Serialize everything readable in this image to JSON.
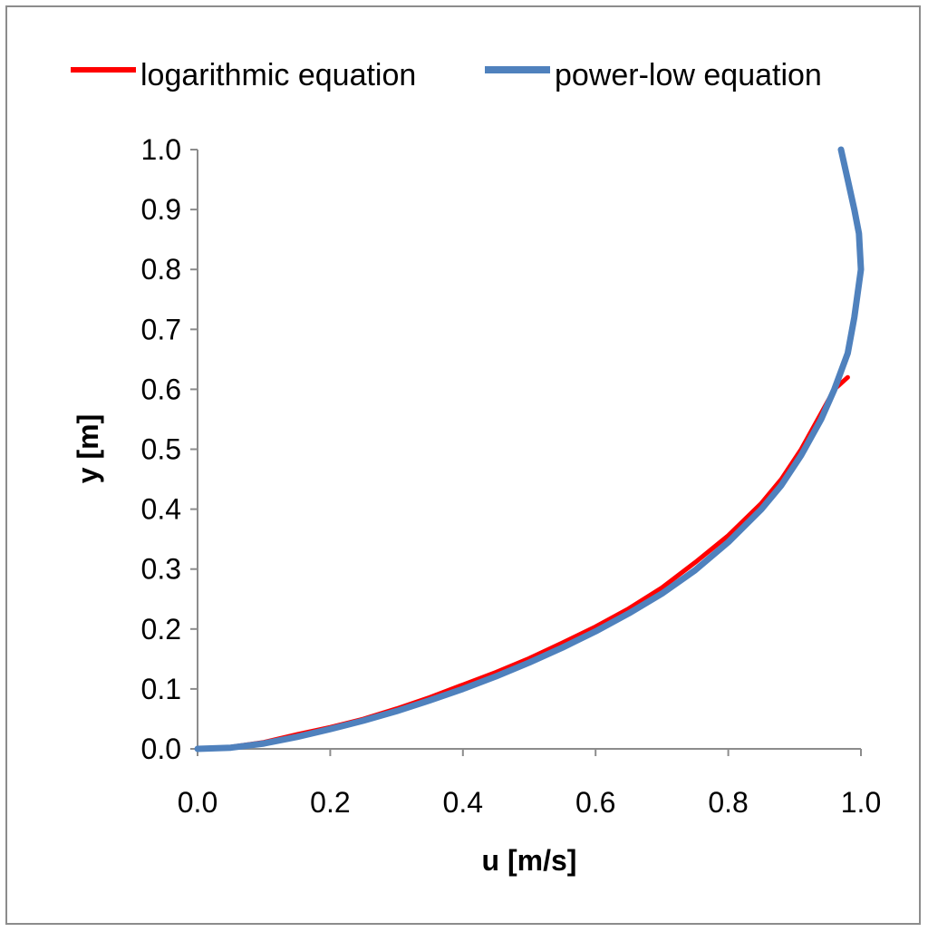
{
  "chart_data": {
    "type": "line",
    "xlabel": "u [m/s]",
    "ylabel": "y [m]",
    "xlim": [
      0,
      1
    ],
    "ylim": [
      0,
      1
    ],
    "x_ticks": [
      "0.0",
      "0.2",
      "0.4",
      "0.6",
      "0.8",
      "1.0"
    ],
    "y_ticks": [
      "0.0",
      "0.1",
      "0.2",
      "0.3",
      "0.4",
      "0.5",
      "0.6",
      "0.7",
      "0.8",
      "0.9",
      "1.0"
    ],
    "grid": false,
    "legend_position": "top",
    "series": [
      {
        "name": "logarithmic equation",
        "color": "#ff0000",
        "points": [
          [
            0.0,
            0.0
          ],
          [
            0.05,
            0.003
          ],
          [
            0.1,
            0.011
          ],
          [
            0.15,
            0.024
          ],
          [
            0.2,
            0.036
          ],
          [
            0.25,
            0.05
          ],
          [
            0.3,
            0.067
          ],
          [
            0.35,
            0.086
          ],
          [
            0.4,
            0.107
          ],
          [
            0.45,
            0.128
          ],
          [
            0.5,
            0.151
          ],
          [
            0.55,
            0.177
          ],
          [
            0.6,
            0.204
          ],
          [
            0.65,
            0.234
          ],
          [
            0.7,
            0.269
          ],
          [
            0.75,
            0.311
          ],
          [
            0.8,
            0.356
          ],
          [
            0.85,
            0.41
          ],
          [
            0.88,
            0.45
          ],
          [
            0.91,
            0.5
          ],
          [
            0.94,
            0.56
          ],
          [
            0.96,
            0.6
          ],
          [
            0.98,
            0.62
          ]
        ]
      },
      {
        "name": "power-low equation",
        "color": "#4f81bd",
        "points": [
          [
            0.0,
            0.0
          ],
          [
            0.05,
            0.002
          ],
          [
            0.1,
            0.009
          ],
          [
            0.15,
            0.02
          ],
          [
            0.2,
            0.033
          ],
          [
            0.25,
            0.047
          ],
          [
            0.3,
            0.063
          ],
          [
            0.35,
            0.081
          ],
          [
            0.4,
            0.1
          ],
          [
            0.45,
            0.121
          ],
          [
            0.5,
            0.144
          ],
          [
            0.55,
            0.169
          ],
          [
            0.6,
            0.196
          ],
          [
            0.65,
            0.226
          ],
          [
            0.7,
            0.259
          ],
          [
            0.75,
            0.298
          ],
          [
            0.8,
            0.345
          ],
          [
            0.85,
            0.4
          ],
          [
            0.88,
            0.44
          ],
          [
            0.91,
            0.49
          ],
          [
            0.94,
            0.55
          ],
          [
            0.96,
            0.6
          ],
          [
            0.98,
            0.66
          ],
          [
            0.99,
            0.72
          ],
          [
            1.0,
            0.8
          ],
          [
            0.997,
            0.86
          ],
          [
            0.99,
            0.9
          ],
          [
            0.98,
            0.95
          ],
          [
            0.97,
            1.0
          ]
        ]
      }
    ]
  }
}
